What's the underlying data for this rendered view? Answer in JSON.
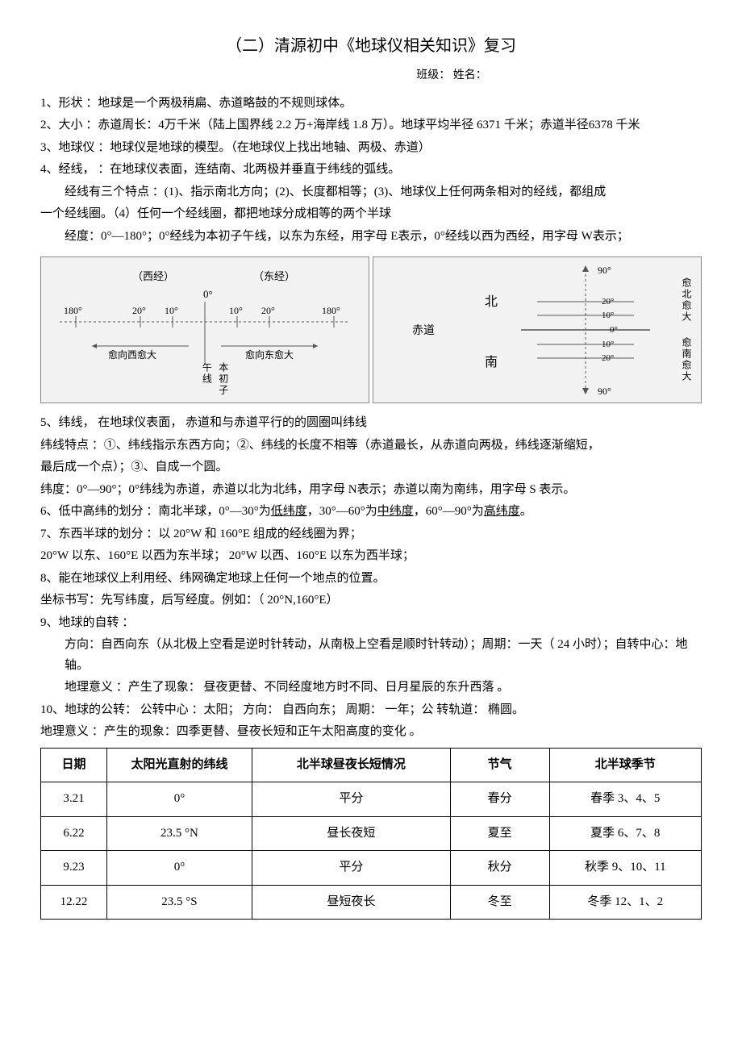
{
  "title": "（二）清源初中《地球仪相关知识》复习",
  "subtitle": "班级：        姓名：",
  "p1": "1、形状 ：地球是一个两极稍扁、赤道略鼓的不规则球体。",
  "p2": "2、大小 ：赤道周长：4万千米（陆上国界线   2.2  万+海岸线  1.8  万）。地球平均半径   6371 千米；赤道半径6378 千米",
  "p3": "3、地球仪 ：地球仪是地球的模型。（在地球仪上找出地轴、两极、赤道）",
  "p4": "4、经线， ：在地球仪表面，连结南、北两极并垂直于纬线的弧线。",
  "p4a": "经线有三个特点 ：(1)、指示南北方向；(2)、长度都相等；(3)、地球仪上任何两条相对的经线，都组成",
  "p4b": "一个经线圈。（4）任何一个经线圈，都把地球分成相等的两个半球",
  "p4c": "经度：0°—180°；0°经线为本初子午线，以东为东经，用字母      E表示，0°经线以西为西经，用字母  W表示；",
  "p5": "5、纬线，  在地球仪表面，  赤道和与赤道平行的的圆圈叫纬线",
  "p5a": "纬线特点 ：①、纬线指示东西方向；②、纬线的长度不相等（赤道最长，从赤道向两极，纬线逐渐缩短，",
  "p5b": "最后成一个点）；③、自成一个圆。",
  "p5c_a": "纬度：0°—90°；0°纬线为赤道，赤道以北为北纬，用字母     N表示；赤道以南为南纬，用字母     S 表示。",
  "p6a": "6、低中高纬的划分 ：南北半球，0°—30°为",
  "p6b": "低纬度",
  "p6c": "，30°—60°为",
  "p6d": "中纬度",
  "p6e": "，60°—90°为",
  "p6f": "高纬度",
  "p6g": "。",
  "p7": "7、东西半球的划分 ：以 20°W 和 160°E 组成的经线圈为界；",
  "p7a": "20°W 以东、160°E 以西为东半球；  20°W 以西、160°E 以东为西半球；",
  "p8": "8、能在地球仪上利用经、纬网确定地球上任何一个地点的位置。",
  "p8a": "坐标书写：先写纬度，后写经度。例如：（    20°N,160°E）",
  "p9": "9、地球的自转 ：",
  "p9a": "方向：自西向东（从北极上空看是逆时针转动，从南极上空看是顺时针转动）；周期：一天（         24 小时）；自转中心：地轴。",
  "p9b": "地理意义 ：产生了现象：  昼夜更替、不同经度地方时不同、日月星辰的东升西落    。",
  "p10": "10、地球的公转：  公转中心 ：太阳；  方向：  自西向东；  周期：  一年；公  转轨道：   椭圆。",
  "p10a": "地理意义 ：产生的现象：四季更替、昼夜长短和正午太阳高度的变化    。",
  "diagram1": {
    "west_label": "（西经）",
    "east_label": "（东经）",
    "zero": "0°",
    "ticks_left": [
      "180°",
      "20°",
      "10°"
    ],
    "ticks_right": [
      "10°",
      "20°",
      "180°"
    ],
    "arrow_left": "愈向西愈大",
    "arrow_right": "愈向东愈大",
    "center_label": "本初子午线",
    "axis_color": "#555555",
    "bg": "#f2f2f2"
  },
  "diagram2": {
    "top": "90°",
    "ticks": [
      "20°",
      "10°",
      "0°",
      "10°",
      "20°"
    ],
    "bottom": "90°",
    "equator": "赤道",
    "north": "北",
    "south": "南",
    "right_top": "愈北愈大",
    "right_bot": "愈南愈大",
    "axis_color": "#555555",
    "bg": "#f2f2f2"
  },
  "table": {
    "headers": [
      "日期",
      "太阳光直射的纬线",
      "北半球昼夜长短情况",
      "节气",
      "北半球季节"
    ],
    "rows": [
      [
        "3.21",
        "0°",
        "平分",
        "春分",
        "春季 3、4、5"
      ],
      [
        "6.22",
        "23.5 °N",
        "昼长夜短",
        "夏至",
        "夏季 6、7、8"
      ],
      [
        "9.23",
        "0°",
        "平分",
        "秋分",
        "秋季 9、10、11"
      ],
      [
        "12.22",
        "23.5 °S",
        "昼短夜长",
        "冬至",
        "冬季 12、1、2"
      ]
    ],
    "col_widths": [
      "10%",
      "22%",
      "30%",
      "15%",
      "23%"
    ]
  }
}
